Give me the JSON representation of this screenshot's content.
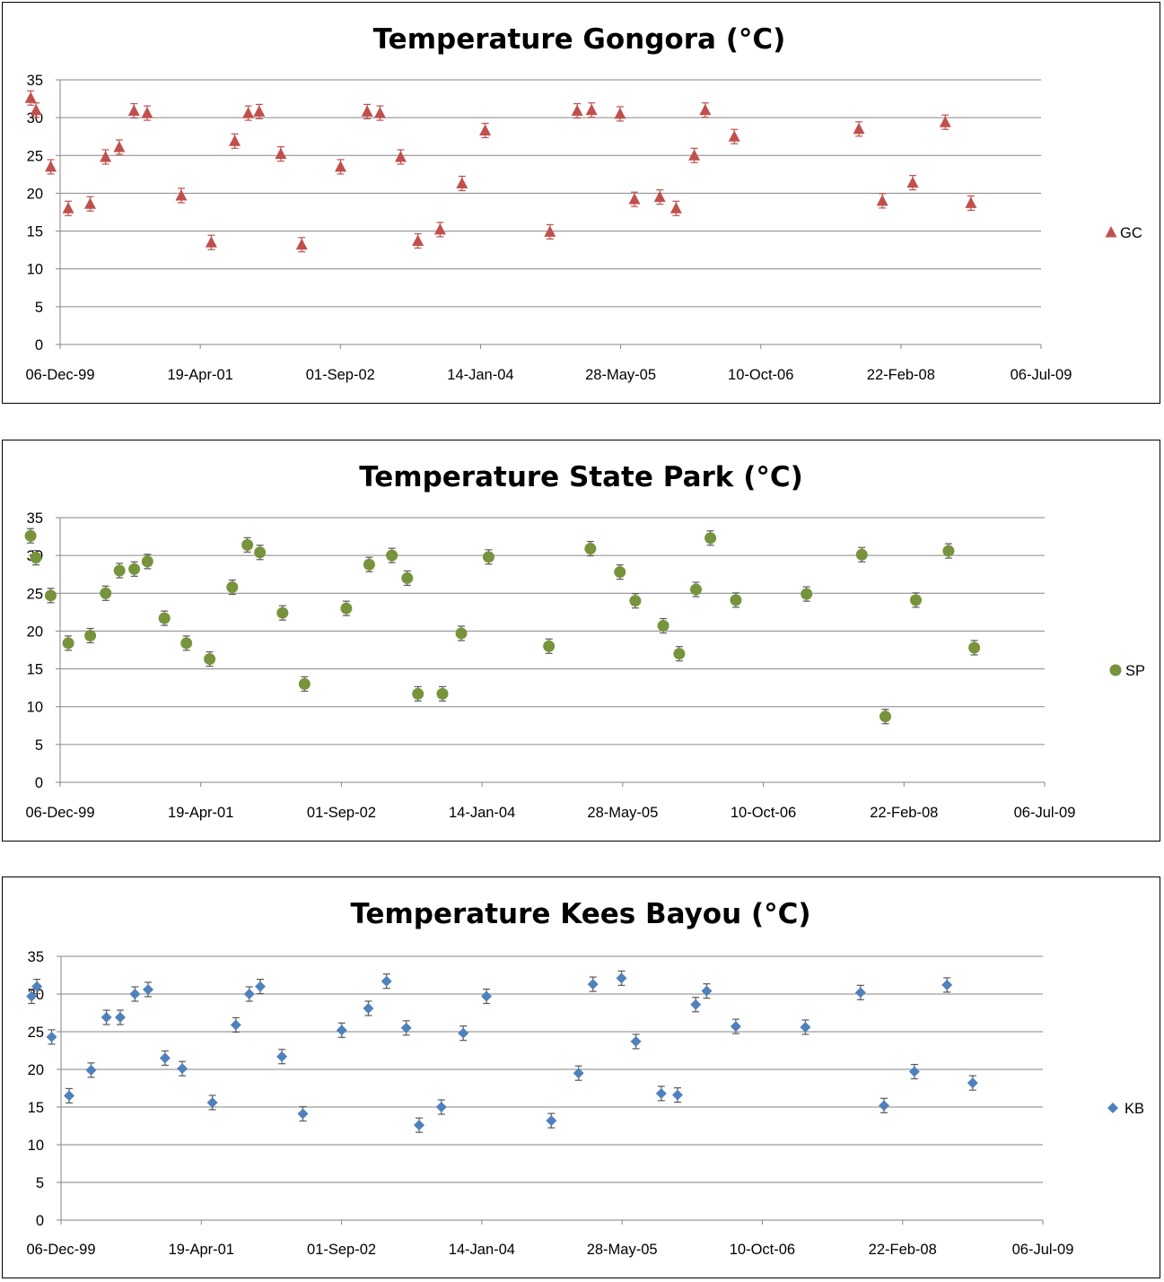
{
  "chart_data": [
    {
      "type": "scatter",
      "title": "Temperature Gongora (°C)",
      "xlabel": "",
      "ylabel": "",
      "ylim": [
        0,
        35
      ],
      "yticks": [
        "0",
        "5",
        "10",
        "15",
        "20",
        "25",
        "30",
        "35"
      ],
      "xlim": [
        "2000-12-06",
        "2009-07-06"
      ],
      "xticks": [
        "06-Dec-99",
        "19-Apr-01",
        "01-Sep-02",
        "14-Jan-04",
        "28-May-05",
        "10-Oct-06",
        "22-Feb-08",
        "06-Jul-09"
      ],
      "grid": "horizontal",
      "legend_position": "right",
      "marker": "triangle",
      "color": "#c0504d",
      "error_bars": true,
      "series": [
        {
          "name": "GC",
          "points": [
            {
              "x": "2000-09-03",
              "y": 32.6
            },
            {
              "x": "2000-09-20",
              "y": 31.0
            },
            {
              "x": "2000-11-06",
              "y": 23.5
            },
            {
              "x": "2001-01-01",
              "y": 18.0
            },
            {
              "x": "2001-03-12",
              "y": 18.6
            },
            {
              "x": "2001-04-30",
              "y": 24.8
            },
            {
              "x": "2001-06-13",
              "y": 26.1
            },
            {
              "x": "2001-07-30",
              "y": 30.9
            },
            {
              "x": "2001-09-10",
              "y": 30.6
            },
            {
              "x": "2001-12-28",
              "y": 19.7
            },
            {
              "x": "2002-04-03",
              "y": 13.5
            },
            {
              "x": "2002-06-17",
              "y": 26.9
            },
            {
              "x": "2002-07-30",
              "y": 30.6
            },
            {
              "x": "2002-09-03",
              "y": 30.8
            },
            {
              "x": "2002-11-11",
              "y": 25.2
            },
            {
              "x": "2003-01-17",
              "y": 13.2
            },
            {
              "x": "2003-05-21",
              "y": 23.5
            },
            {
              "x": "2003-08-14",
              "y": 30.8
            },
            {
              "x": "2003-09-24",
              "y": 30.6
            },
            {
              "x": "2003-11-29",
              "y": 24.8
            },
            {
              "x": "2004-01-23",
              "y": 13.7
            },
            {
              "x": "2004-04-03",
              "y": 15.2
            },
            {
              "x": "2004-06-12",
              "y": 21.3
            },
            {
              "x": "2004-08-25",
              "y": 28.3
            },
            {
              "x": "2005-03-20",
              "y": 14.9
            },
            {
              "x": "2005-06-15",
              "y": 30.9
            },
            {
              "x": "2005-07-31",
              "y": 31.0
            },
            {
              "x": "2005-10-30",
              "y": 30.5
            },
            {
              "x": "2005-12-15",
              "y": 19.2
            },
            {
              "x": "2006-03-06",
              "y": 19.5
            },
            {
              "x": "2006-04-27",
              "y": 18.0
            },
            {
              "x": "2006-06-24",
              "y": 25.0
            },
            {
              "x": "2006-07-29",
              "y": 31.0
            },
            {
              "x": "2006-10-30",
              "y": 27.5
            },
            {
              "x": "2007-12-02",
              "y": 28.5
            },
            {
              "x": "2008-02-15",
              "y": 19.0
            },
            {
              "x": "2008-05-22",
              "y": 21.4
            },
            {
              "x": "2008-09-03",
              "y": 29.4
            },
            {
              "x": "2008-11-24",
              "y": 18.7
            }
          ]
        }
      ]
    },
    {
      "type": "scatter",
      "title": "Temperature State Park (°C)",
      "xlabel": "",
      "ylabel": "",
      "ylim": [
        0,
        35
      ],
      "yticks": [
        "0",
        "5",
        "10",
        "15",
        "20",
        "25",
        "30",
        "35"
      ],
      "xlim": [
        "2000-12-06",
        "2009-07-06"
      ],
      "xticks": [
        "06-Dec-99",
        "19-Apr-01",
        "01-Sep-02",
        "14-Jan-04",
        "28-May-05",
        "10-Oct-06",
        "22-Feb-08",
        "06-Jul-09"
      ],
      "grid": "horizontal",
      "legend_position": "right",
      "marker": "circle",
      "color": "#77933c",
      "error_bars": true,
      "series": [
        {
          "name": "SP",
          "points": [
            {
              "x": "2000-09-03",
              "y": 32.6
            },
            {
              "x": "2000-09-20",
              "y": 29.7
            },
            {
              "x": "2000-11-06",
              "y": 24.7
            },
            {
              "x": "2001-01-01",
              "y": 18.4
            },
            {
              "x": "2001-03-12",
              "y": 19.4
            },
            {
              "x": "2001-04-30",
              "y": 25.0
            },
            {
              "x": "2001-06-13",
              "y": 28.0
            },
            {
              "x": "2001-07-30",
              "y": 28.2
            },
            {
              "x": "2001-09-10",
              "y": 29.2
            },
            {
              "x": "2001-11-03",
              "y": 21.7
            },
            {
              "x": "2002-01-12",
              "y": 18.4
            },
            {
              "x": "2002-03-27",
              "y": 16.3
            },
            {
              "x": "2002-06-07",
              "y": 25.8
            },
            {
              "x": "2002-07-25",
              "y": 31.4
            },
            {
              "x": "2002-09-03",
              "y": 30.4
            },
            {
              "x": "2002-11-14",
              "y": 22.4
            },
            {
              "x": "2003-01-23",
              "y": 13.0
            },
            {
              "x": "2003-06-05",
              "y": 23.0
            },
            {
              "x": "2003-08-17",
              "y": 28.8
            },
            {
              "x": "2003-10-28",
              "y": 30.0
            },
            {
              "x": "2003-12-16",
              "y": 27.0
            },
            {
              "x": "2004-01-19",
              "y": 11.7
            },
            {
              "x": "2004-04-06",
              "y": 11.7
            },
            {
              "x": "2004-06-05",
              "y": 19.7
            },
            {
              "x": "2004-08-31",
              "y": 29.8
            },
            {
              "x": "2005-03-11",
              "y": 18.0
            },
            {
              "x": "2005-07-21",
              "y": 30.9
            },
            {
              "x": "2005-10-23",
              "y": 27.8
            },
            {
              "x": "2005-12-11",
              "y": 24.0
            },
            {
              "x": "2006-03-10",
              "y": 20.7
            },
            {
              "x": "2006-04-30",
              "y": 17.0
            },
            {
              "x": "2006-06-22",
              "y": 25.5
            },
            {
              "x": "2006-08-07",
              "y": 32.3
            },
            {
              "x": "2006-10-27",
              "y": 24.1
            },
            {
              "x": "2007-06-09",
              "y": 24.9
            },
            {
              "x": "2007-12-02",
              "y": 30.1
            },
            {
              "x": "2008-02-15",
              "y": 8.7
            },
            {
              "x": "2008-05-22",
              "y": 24.1
            },
            {
              "x": "2008-09-03",
              "y": 30.6
            },
            {
              "x": "2008-11-24",
              "y": 17.8
            }
          ]
        }
      ]
    },
    {
      "type": "scatter",
      "title": "Temperature Kees Bayou (°C)",
      "xlabel": "",
      "ylabel": "",
      "ylim": [
        0,
        35
      ],
      "yticks": [
        "0",
        "5",
        "10",
        "15",
        "20",
        "25",
        "30",
        "35"
      ],
      "xlim": [
        "2000-12-06",
        "2009-07-06"
      ],
      "xticks": [
        "06-Dec-99",
        "19-Apr-01",
        "01-Sep-02",
        "14-Jan-04",
        "28-May-05",
        "10-Oct-06",
        "22-Feb-08",
        "06-Jul-09"
      ],
      "grid": "horizontal",
      "legend_position": "right",
      "marker": "diamond",
      "color": "#4f81bd",
      "error_bars": true,
      "series": [
        {
          "name": "KB",
          "points": [
            {
              "x": "2000-09-03",
              "y": 29.7
            },
            {
              "x": "2000-09-20",
              "y": 31.0
            },
            {
              "x": "2000-11-06",
              "y": 24.3
            },
            {
              "x": "2001-01-01",
              "y": 16.5
            },
            {
              "x": "2001-03-12",
              "y": 19.9
            },
            {
              "x": "2001-04-30",
              "y": 26.9
            },
            {
              "x": "2001-06-13",
              "y": 26.9
            },
            {
              "x": "2001-07-30",
              "y": 30.0
            },
            {
              "x": "2001-09-10",
              "y": 30.6
            },
            {
              "x": "2001-11-03",
              "y": 21.5
            },
            {
              "x": "2001-12-28",
              "y": 20.1
            },
            {
              "x": "2002-04-03",
              "y": 15.6
            },
            {
              "x": "2002-06-17",
              "y": 25.9
            },
            {
              "x": "2002-07-30",
              "y": 30.0
            },
            {
              "x": "2002-09-03",
              "y": 31.0
            },
            {
              "x": "2002-11-11",
              "y": 21.7
            },
            {
              "x": "2003-01-17",
              "y": 14.1
            },
            {
              "x": "2003-05-21",
              "y": 25.2
            },
            {
              "x": "2003-08-14",
              "y": 28.1
            },
            {
              "x": "2003-10-11",
              "y": 31.7
            },
            {
              "x": "2003-12-13",
              "y": 25.5
            },
            {
              "x": "2004-01-23",
              "y": 12.6
            },
            {
              "x": "2004-04-03",
              "y": 15.0
            },
            {
              "x": "2004-06-12",
              "y": 24.8
            },
            {
              "x": "2004-08-25",
              "y": 29.7
            },
            {
              "x": "2005-03-20",
              "y": 13.2
            },
            {
              "x": "2005-06-15",
              "y": 19.5
            },
            {
              "x": "2005-07-31",
              "y": 31.3
            },
            {
              "x": "2005-10-30",
              "y": 32.1
            },
            {
              "x": "2005-12-15",
              "y": 23.7
            },
            {
              "x": "2006-03-06",
              "y": 16.8
            },
            {
              "x": "2006-04-27",
              "y": 16.6
            },
            {
              "x": "2006-06-24",
              "y": 28.6
            },
            {
              "x": "2006-07-29",
              "y": 30.4
            },
            {
              "x": "2006-10-30",
              "y": 25.7
            },
            {
              "x": "2007-06-09",
              "y": 25.6
            },
            {
              "x": "2007-12-02",
              "y": 30.2
            },
            {
              "x": "2008-02-15",
              "y": 15.2
            },
            {
              "x": "2008-05-22",
              "y": 19.7
            },
            {
              "x": "2008-09-03",
              "y": 31.2
            },
            {
              "x": "2008-11-24",
              "y": 18.2
            }
          ]
        }
      ]
    }
  ]
}
